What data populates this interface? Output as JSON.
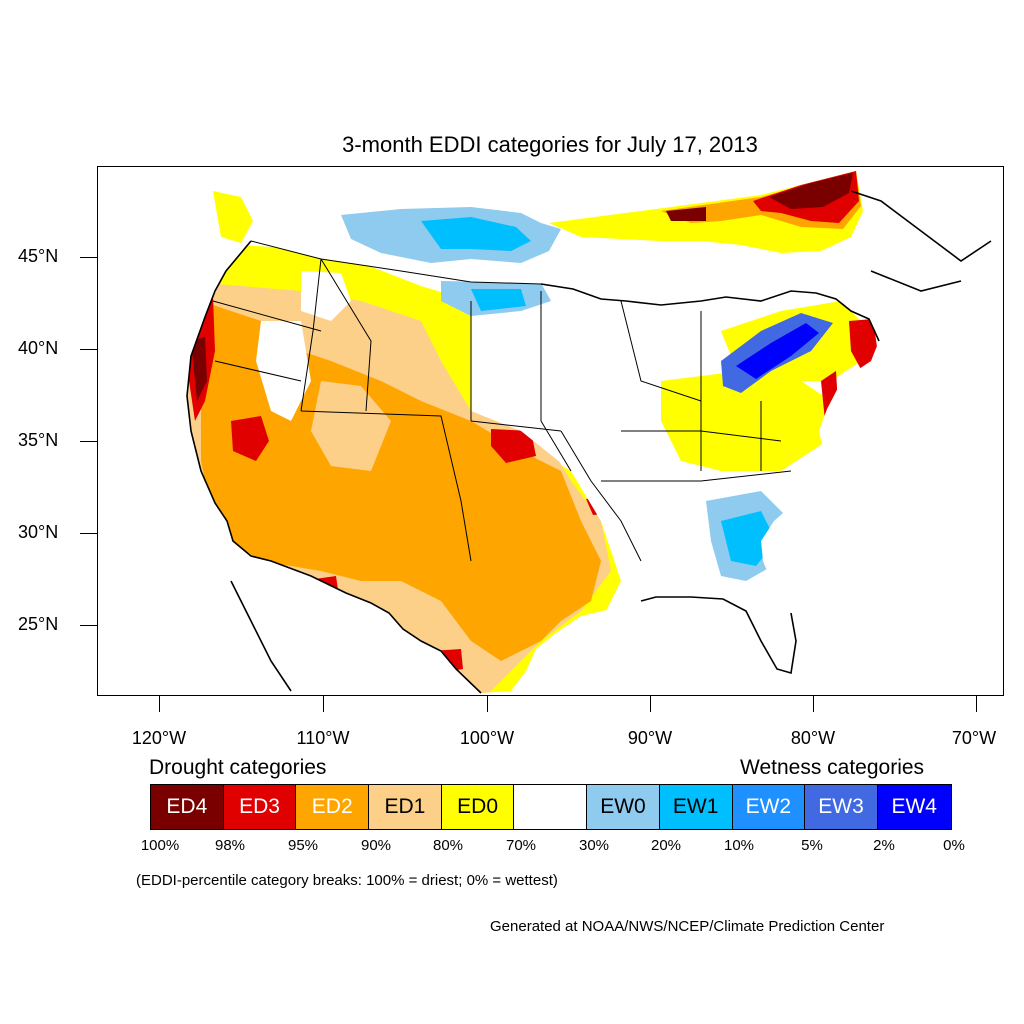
{
  "map": {
    "title": "3-month EDDI categories for July 17, 2013",
    "projection": "Lambert conformal conic, contiguous United States with Canada and Mexico borders",
    "latitude_labels": [
      "45°N",
      "40°N",
      "35°N",
      "30°N",
      "25°N"
    ],
    "longitude_labels": [
      "120°W",
      "110°W",
      "100°W",
      "90°W",
      "80°W",
      "70°W"
    ],
    "regions_shown": [
      {
        "area": "Pacific coast (CA/OR/WA)",
        "category": "ED4 / ED3"
      },
      {
        "area": "Interior West and Great Basin",
        "category": "ED2 / ED1 / ED0"
      },
      {
        "area": "Southern Plains and Texas",
        "category": "ED2 / ED1"
      },
      {
        "area": "Central Kansas",
        "category": "ED3"
      },
      {
        "area": "Northern Plains / North Dakota",
        "category": "EW0 / EW1"
      },
      {
        "area": "Southeast (GA/SC)",
        "category": "EW0 / EW1"
      },
      {
        "area": "Lower Great Lakes / Lake Ontario",
        "category": "EW2 / EW3 / EW4"
      },
      {
        "area": "Northern Quebec",
        "category": "ED4 / ED3"
      },
      {
        "area": "Mid-Atlantic coast",
        "category": "ED3 / ED4"
      }
    ]
  },
  "legend": {
    "drought_heading": "Drought categories",
    "wetness_heading": "Wetness categories",
    "categories": [
      {
        "label": "ED4",
        "color": "#7a0000",
        "text_color": "#ffffff"
      },
      {
        "label": "ED3",
        "color": "#e00000",
        "text_color": "#ffffff"
      },
      {
        "label": "ED2",
        "color": "#ffa500",
        "text_color": "#ffffff"
      },
      {
        "label": "ED1",
        "color": "#fdd08a",
        "text_color": "#000000"
      },
      {
        "label": "ED0",
        "color": "#ffff00",
        "text_color": "#000000"
      },
      {
        "label": "",
        "color": "#ffffff",
        "text_color": "#000000"
      },
      {
        "label": "EW0",
        "color": "#8ecbef",
        "text_color": "#000000"
      },
      {
        "label": "EW1",
        "color": "#00bfff",
        "text_color": "#000000"
      },
      {
        "label": "EW2",
        "color": "#1e90ff",
        "text_color": "#ffffff"
      },
      {
        "label": "EW3",
        "color": "#4169e1",
        "text_color": "#ffffff"
      },
      {
        "label": "EW4",
        "color": "#0000ff",
        "text_color": "#ffffff"
      }
    ],
    "percent_breaks": [
      "100%",
      "98%",
      "95%",
      "90%",
      "80%",
      "70%",
      "30%",
      "20%",
      "10%",
      "5%",
      "2%",
      "0%"
    ]
  },
  "footnote": "(EDDI-percentile category breaks: 100% = driest; 0% = wettest)",
  "credit": "Generated at NOAA/NWS/NCEP/Climate Prediction Center"
}
